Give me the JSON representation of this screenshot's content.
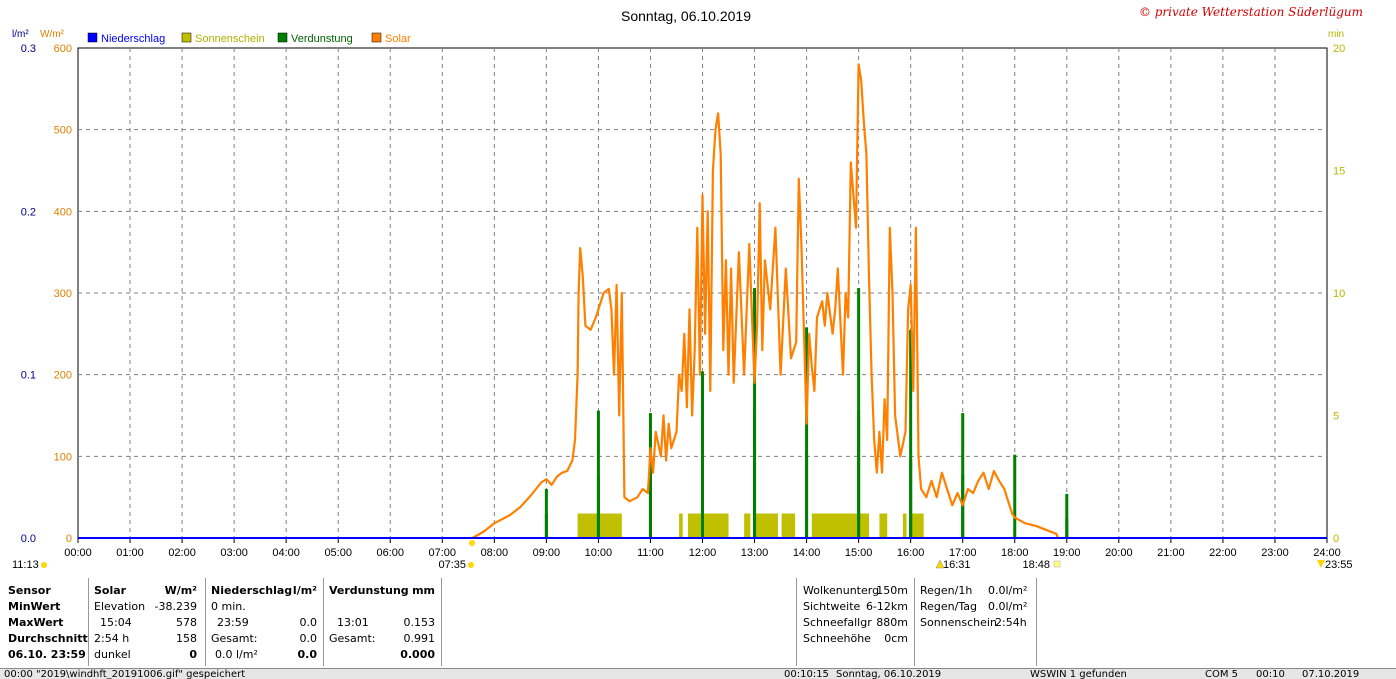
{
  "title": "Sonntag, 06.10.2019",
  "watermark": "© private Wetterstation Süderlügum",
  "unit_labels": {
    "left1": "l/m²",
    "left2": "W/m²",
    "right": "min"
  },
  "legend": [
    {
      "label": "Niederschlag",
      "color": "#0000ff"
    },
    {
      "label": "Sonnenschein",
      "color": "#c0c000"
    },
    {
      "label": "Verdunstung",
      "color": "#008000"
    },
    {
      "label": "Solar",
      "color": "#ff8000"
    }
  ],
  "colors": {
    "precip_axis": "#00008b",
    "solar_axis": "#e08000",
    "sun_axis": "#b8b800",
    "solar": "#ff8000",
    "sunshine": "#c0c000",
    "evap": "#008000",
    "precip": "#0000ff"
  },
  "chart_data": {
    "type": "line",
    "x_ticks": [
      "00:00",
      "01:00",
      "02:00",
      "03:00",
      "04:00",
      "05:00",
      "06:00",
      "07:00",
      "08:00",
      "09:00",
      "10:00",
      "11:00",
      "12:00",
      "13:00",
      "14:00",
      "15:00",
      "16:00",
      "17:00",
      "18:00",
      "19:00",
      "20:00",
      "21:00",
      "22:00",
      "23:00",
      "24:00"
    ],
    "y_left_precip_ticks": [
      "0.3",
      "0.2",
      "0.1",
      "0.0"
    ],
    "y_left_solar_ticks": [
      "600",
      "500",
      "400",
      "300",
      "200",
      "100",
      "0"
    ],
    "y_right_sun_ticks": [
      "20",
      "15",
      "10",
      "5",
      "0"
    ],
    "ylim_solar": [
      0,
      600
    ],
    "ylim_precip": [
      0,
      0.3
    ],
    "ylim_sunshine": [
      0,
      20
    ],
    "grid": true,
    "solar_series": {
      "name": "Solar",
      "points": [
        [
          7.58,
          0
        ],
        [
          7.8,
          8
        ],
        [
          8.0,
          18
        ],
        [
          8.3,
          28
        ],
        [
          8.5,
          38
        ],
        [
          8.7,
          52
        ],
        [
          8.9,
          68
        ],
        [
          9.0,
          72
        ],
        [
          9.1,
          65
        ],
        [
          9.2,
          75
        ],
        [
          9.3,
          80
        ],
        [
          9.4,
          82
        ],
        [
          9.5,
          95
        ],
        [
          9.55,
          120
        ],
        [
          9.6,
          200
        ],
        [
          9.62,
          300
        ],
        [
          9.65,
          355
        ],
        [
          9.7,
          320
        ],
        [
          9.75,
          260
        ],
        [
          9.85,
          255
        ],
        [
          9.95,
          270
        ],
        [
          10.1,
          300
        ],
        [
          10.2,
          305
        ],
        [
          10.25,
          280
        ],
        [
          10.3,
          200
        ],
        [
          10.35,
          310
        ],
        [
          10.4,
          150
        ],
        [
          10.45,
          300
        ],
        [
          10.5,
          50
        ],
        [
          10.6,
          45
        ],
        [
          10.75,
          50
        ],
        [
          10.85,
          60
        ],
        [
          10.95,
          55
        ],
        [
          11.0,
          110
        ],
        [
          11.05,
          80
        ],
        [
          11.1,
          130
        ],
        [
          11.2,
          100
        ],
        [
          11.25,
          150
        ],
        [
          11.3,
          95
        ],
        [
          11.35,
          140
        ],
        [
          11.4,
          110
        ],
        [
          11.45,
          120
        ],
        [
          11.5,
          130
        ],
        [
          11.55,
          200
        ],
        [
          11.6,
          180
        ],
        [
          11.65,
          250
        ],
        [
          11.7,
          160
        ],
        [
          11.75,
          280
        ],
        [
          11.8,
          150
        ],
        [
          11.85,
          230
        ],
        [
          11.9,
          380
        ],
        [
          11.95,
          200
        ],
        [
          12.0,
          420
        ],
        [
          12.05,
          250
        ],
        [
          12.1,
          400
        ],
        [
          12.15,
          180
        ],
        [
          12.2,
          450
        ],
        [
          12.25,
          500
        ],
        [
          12.3,
          520
        ],
        [
          12.35,
          470
        ],
        [
          12.4,
          230
        ],
        [
          12.45,
          340
        ],
        [
          12.5,
          200
        ],
        [
          12.55,
          330
        ],
        [
          12.6,
          190
        ],
        [
          12.7,
          350
        ],
        [
          12.8,
          200
        ],
        [
          12.9,
          360
        ],
        [
          13.0,
          190
        ],
        [
          13.05,
          260
        ],
        [
          13.1,
          410
        ],
        [
          13.15,
          230
        ],
        [
          13.2,
          340
        ],
        [
          13.3,
          280
        ],
        [
          13.4,
          380
        ],
        [
          13.5,
          200
        ],
        [
          13.6,
          330
        ],
        [
          13.7,
          220
        ],
        [
          13.8,
          240
        ],
        [
          13.85,
          440
        ],
        [
          13.9,
          360
        ],
        [
          14.0,
          140
        ],
        [
          14.05,
          250
        ],
        [
          14.1,
          210
        ],
        [
          14.15,
          180
        ],
        [
          14.2,
          270
        ],
        [
          14.3,
          290
        ],
        [
          14.35,
          260
        ],
        [
          14.4,
          300
        ],
        [
          14.5,
          250
        ],
        [
          14.55,
          280
        ],
        [
          14.6,
          330
        ],
        [
          14.7,
          200
        ],
        [
          14.75,
          300
        ],
        [
          14.8,
          270
        ],
        [
          14.85,
          460
        ],
        [
          14.9,
          420
        ],
        [
          14.95,
          380
        ],
        [
          15.0,
          580
        ],
        [
          15.05,
          560
        ],
        [
          15.1,
          510
        ],
        [
          15.15,
          470
        ],
        [
          15.2,
          320
        ],
        [
          15.25,
          200
        ],
        [
          15.3,
          120
        ],
        [
          15.35,
          80
        ],
        [
          15.4,
          130
        ],
        [
          15.45,
          80
        ],
        [
          15.5,
          170
        ],
        [
          15.55,
          120
        ],
        [
          15.6,
          380
        ],
        [
          15.65,
          300
        ],
        [
          15.7,
          150
        ],
        [
          15.8,
          100
        ],
        [
          15.9,
          130
        ],
        [
          15.95,
          280
        ],
        [
          16.0,
          310
        ],
        [
          16.05,
          180
        ],
        [
          16.1,
          380
        ],
        [
          16.15,
          100
        ],
        [
          16.2,
          60
        ],
        [
          16.3,
          50
        ],
        [
          16.4,
          70
        ],
        [
          16.5,
          50
        ],
        [
          16.6,
          80
        ],
        [
          16.7,
          60
        ],
        [
          16.8,
          40
        ],
        [
          16.9,
          55
        ],
        [
          17.0,
          40
        ],
        [
          17.1,
          60
        ],
        [
          17.2,
          55
        ],
        [
          17.3,
          70
        ],
        [
          17.4,
          80
        ],
        [
          17.5,
          60
        ],
        [
          17.6,
          82
        ],
        [
          17.7,
          70
        ],
        [
          17.8,
          60
        ],
        [
          17.9,
          40
        ],
        [
          17.95,
          30
        ],
        [
          18.0,
          25
        ],
        [
          18.2,
          18
        ],
        [
          18.4,
          15
        ],
        [
          18.6,
          10
        ],
        [
          18.8,
          5
        ],
        [
          18.83,
          0
        ]
      ]
    },
    "sunshine_series": {
      "name": "Sonnenschein",
      "unit": "min",
      "intervals": [
        [
          9.6,
          10.45
        ],
        [
          11.55,
          11.62
        ],
        [
          11.72,
          12.5
        ],
        [
          12.8,
          12.92
        ],
        [
          12.98,
          13.45
        ],
        [
          13.52,
          13.78
        ],
        [
          14.1,
          15.2
        ],
        [
          15.4,
          15.55
        ],
        [
          15.85,
          15.92
        ],
        [
          16.0,
          16.25
        ]
      ],
      "value": 1
    },
    "evap_series": {
      "name": "Verdunstung",
      "unit": "min",
      "bars": [
        [
          9.0,
          1
        ],
        [
          9.0,
          2
        ],
        [
          10.0,
          2.5
        ],
        [
          10.0,
          5.2
        ],
        [
          11.0,
          5.1
        ],
        [
          11.0,
          2.5
        ],
        [
          12.0,
          3.2
        ],
        [
          12.0,
          6.8
        ],
        [
          13.0,
          5.2
        ],
        [
          13.0,
          10.2
        ],
        [
          14.0,
          3.5
        ],
        [
          14.0,
          8.6
        ],
        [
          15.0,
          5.2
        ],
        [
          15.0,
          10.2
        ],
        [
          16.0,
          3.2
        ],
        [
          16.0,
          8.5
        ],
        [
          17.0,
          5.1
        ],
        [
          17.0,
          2.6
        ],
        [
          18.0,
          3.4
        ],
        [
          19.0,
          1.8
        ],
        [
          19.0,
          0.8
        ]
      ]
    },
    "precip_series": {
      "name": "Niederschlag",
      "values": "0.0"
    },
    "below_axis_labels": {
      "left_time": "11:13",
      "sunrise": "07:35",
      "sunset1": "16:31",
      "sunset2": "18:48",
      "right_time": "23:55"
    }
  },
  "stats": {
    "col1": [
      "Sensor",
      "MinWert",
      "MaxWert",
      "Durchschnitt",
      "06.10. 23:59"
    ],
    "solar": {
      "header": "Solar",
      "unit": "W/m²",
      "rows": [
        [
          "Elevation",
          "-38.239"
        ],
        [
          "15:04",
          "578"
        ],
        [
          "2:54 h",
          "158"
        ],
        [
          "dunkel",
          "0"
        ]
      ]
    },
    "precip": {
      "header": "Niederschlag",
      "unit": "l/m²",
      "rows": [
        [
          "0 min.",
          ""
        ],
        [
          "23:59",
          "0.0"
        ],
        [
          "Gesamt:",
          "0.0"
        ],
        [
          "0.0 l/m²",
          "0.0"
        ]
      ]
    },
    "evap": {
      "header": "Verdunstung",
      "unit": "mm",
      "rows": [
        [
          "",
          ""
        ],
        [
          "13:01",
          "0.153"
        ],
        [
          "Gesamt:",
          "0.991"
        ],
        [
          "",
          "0.000"
        ]
      ]
    },
    "weather": [
      [
        "Wolkenunterg",
        "150m"
      ],
      [
        "Sichtweite",
        "6-12km"
      ],
      [
        "Schneefallgr",
        "880m"
      ],
      [
        "Schneehöhe",
        "0cm"
      ]
    ],
    "rain": [
      [
        "Regen/1h",
        "0.0l/m²"
      ],
      [
        "Regen/Tag",
        "0.0l/m²"
      ],
      [
        "Sonnenschein",
        "2:54h"
      ]
    ]
  },
  "statusbar": [
    "00:00  \"2019\\windhft_20191006.gif\" gespeichert",
    "00:10:15",
    "Sonntag, 06.10.2019",
    "WSWIN 1 gefunden",
    "COM 5",
    "00:10",
    "07.10.2019"
  ]
}
